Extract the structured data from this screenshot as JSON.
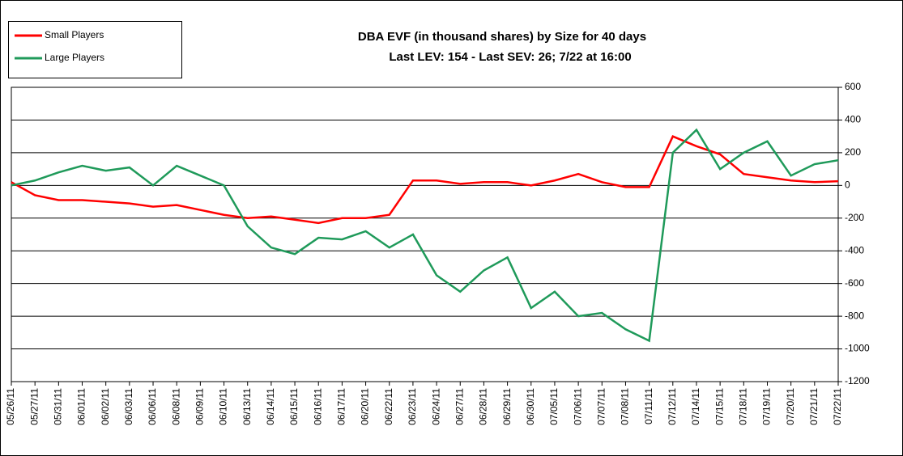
{
  "chart_data": {
    "type": "line",
    "title": "DBA EVF (in thousand shares) by Size for 40 days",
    "subtitle": "Last LEV: 154 - Last SEV: 26; 7/22 at 16:00",
    "categories": [
      "05/26/11",
      "05/27/11",
      "05/31/11",
      "06/01/11",
      "06/02/11",
      "06/03/11",
      "06/06/11",
      "06/08/11",
      "06/09/11",
      "06/10/11",
      "06/13/11",
      "06/14/11",
      "06/15/11",
      "06/16/11",
      "06/17/11",
      "06/20/11",
      "06/22/11",
      "06/23/11",
      "06/24/11",
      "06/27/11",
      "06/28/11",
      "06/29/11",
      "06/30/11",
      "07/05/11",
      "07/06/11",
      "07/07/11",
      "07/08/11",
      "07/11/11",
      "07/12/11",
      "07/14/11",
      "07/15/11",
      "07/18/11",
      "07/19/11",
      "07/20/11",
      "07/21/11",
      "07/22/11"
    ],
    "series": [
      {
        "name": "Small Players",
        "color": "#ff0000",
        "values": [
          20,
          -60,
          -90,
          -90,
          -100,
          -110,
          -130,
          -120,
          -150,
          -180,
          -200,
          -190,
          -210,
          -230,
          -200,
          -200,
          -180,
          30,
          30,
          10,
          20,
          20,
          0,
          30,
          70,
          20,
          -10,
          -10,
          300,
          240,
          190,
          70,
          50,
          30,
          20,
          26
        ]
      },
      {
        "name": "Large Players",
        "color": "#1f9a5a",
        "values": [
          0,
          30,
          80,
          120,
          90,
          110,
          0,
          120,
          60,
          0,
          -250,
          -380,
          -420,
          -320,
          -330,
          -280,
          -380,
          -300,
          -550,
          -650,
          -520,
          -440,
          -750,
          -650,
          -800,
          -780,
          -880,
          -950,
          200,
          340,
          100,
          200,
          270,
          60,
          130,
          154
        ]
      }
    ],
    "ylim": [
      -1200,
      600
    ],
    "yticks": [
      -1200,
      -1000,
      -800,
      -600,
      -400,
      -200,
      0,
      200,
      400,
      600
    ],
    "grid": true,
    "legend": "top-left"
  }
}
